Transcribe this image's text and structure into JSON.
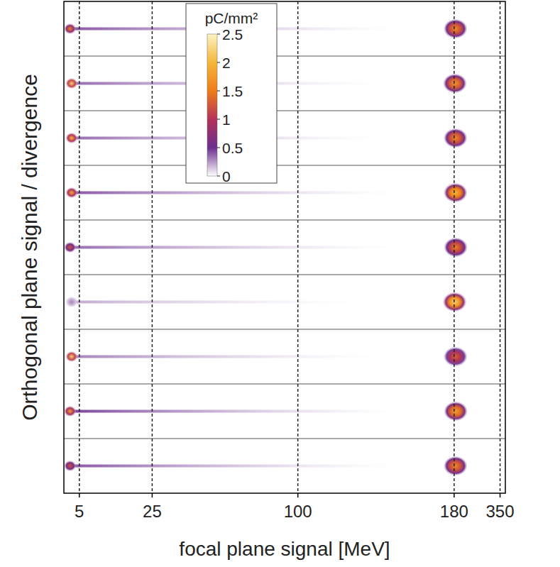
{
  "chart_data": {
    "type": "heatmap",
    "xlabel": "focal plane signal [MeV]",
    "ylabel": "Orthogonal plane signal / divergence",
    "xlim": [
      4,
      380
    ],
    "xticks": [
      5,
      25,
      100,
      180,
      350
    ],
    "tick_labels": "x",
    "grid": true,
    "colorbar": {
      "label": "pC/mm²",
      "range": [
        0,
        2.5
      ],
      "ticks": [
        0,
        0.5,
        1,
        1.5,
        2,
        2.5
      ]
    },
    "shots": [
      {
        "peak_energy": 185,
        "peak_density": 1.6,
        "low_energy": 4.4,
        "low_energy_density": 1.5,
        "tail_end": 150,
        "tail_density": 0.4
      },
      {
        "peak_energy": 183,
        "peak_density": 1.7,
        "low_energy": 4.5,
        "low_energy_density": 2.2,
        "tail_end": 140,
        "tail_density": 0.35
      },
      {
        "peak_energy": 185,
        "peak_density": 1.6,
        "low_energy": 4.5,
        "low_energy_density": 2.0,
        "tail_end": 140,
        "tail_density": 0.35
      },
      {
        "peak_energy": 185,
        "peak_density": 2.0,
        "low_energy": 4.5,
        "low_energy_density": 1.9,
        "tail_end": 150,
        "tail_density": 0.4
      },
      {
        "peak_energy": 186,
        "peak_density": 1.5,
        "low_energy": 4.4,
        "low_energy_density": 1.2,
        "tail_end": 150,
        "tail_density": 0.35
      },
      {
        "peak_energy": 182,
        "peak_density": 2.2,
        "low_energy": 4.5,
        "low_energy_density": 0.3,
        "tail_end": 130,
        "tail_density": 0.2
      },
      {
        "peak_energy": 185,
        "peak_density": 1.3,
        "low_energy": 4.5,
        "low_energy_density": 2.2,
        "tail_end": 140,
        "tail_density": 0.3
      },
      {
        "peak_energy": 186,
        "peak_density": 1.8,
        "low_energy": 4.4,
        "low_energy_density": 1.8,
        "tail_end": 150,
        "tail_density": 0.45
      },
      {
        "peak_energy": 185,
        "peak_density": 1.6,
        "low_energy": 4.4,
        "low_energy_density": 1.2,
        "tail_end": 150,
        "tail_density": 0.4
      }
    ]
  }
}
